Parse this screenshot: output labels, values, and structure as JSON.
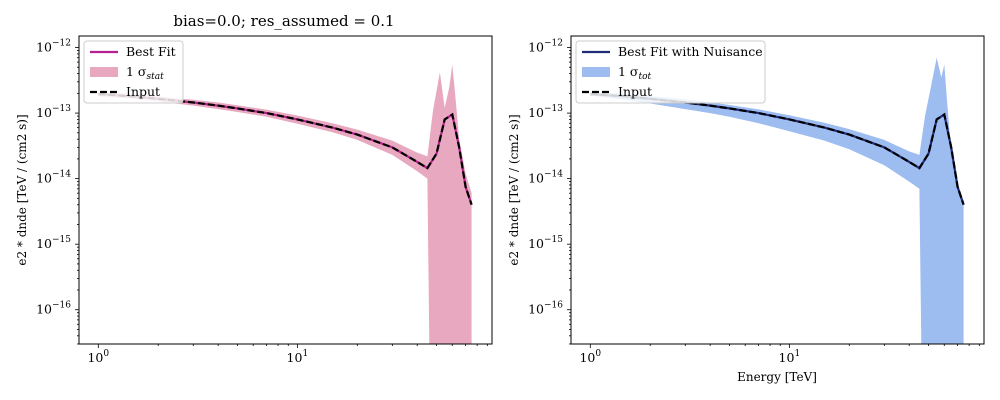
{
  "figure": {
    "title_left": "bias=0.0; res_assumed = 0.1"
  },
  "chart_data": [
    {
      "type": "line",
      "title": "bias=0.0; res_assumed = 0.1",
      "xlabel": "",
      "ylabel": "e2 * dnde [TeV / (cm2 s)]",
      "xscale": "log",
      "yscale": "log",
      "xlim": [
        0.8,
        95
      ],
      "ylim": [
        3e-17,
        1.5e-12
      ],
      "x_ticks": [
        {
          "base": "10",
          "exp": "0"
        },
        {
          "base": "10",
          "exp": "1"
        }
      ],
      "y_ticks": [
        {
          "base": "10",
          "exp": "−12"
        },
        {
          "base": "10",
          "exp": "−13"
        },
        {
          "base": "10",
          "exp": "−14"
        },
        {
          "base": "10",
          "exp": "−15"
        },
        {
          "base": "10",
          "exp": "−16"
        }
      ],
      "legend": {
        "placement": "upper-left",
        "entries": [
          {
            "label": "Best Fit",
            "kind": "line",
            "color": "#b5208f"
          },
          {
            "label": "1 σ",
            "sub": "stat",
            "kind": "band",
            "color": "#e8a9c0"
          },
          {
            "label": "Input",
            "kind": "dashed",
            "color": "#000000"
          }
        ]
      },
      "band_color": "#e8a9c0",
      "fit_color": "#b5208f",
      "series": [
        {
          "name": "Input",
          "x": [
            1,
            1.5,
            2,
            3,
            4,
            5,
            7,
            10,
            15,
            20,
            30,
            40,
            45,
            50,
            55,
            60,
            65,
            70,
            75
          ],
          "y": [
            1.95e-13,
            1.8e-13,
            1.65e-13,
            1.45e-13,
            1.3e-13,
            1.18e-13,
            1e-13,
            8e-14,
            6e-14,
            4.7e-14,
            3e-14,
            1.8e-14,
            1.45e-14,
            2.4e-14,
            8e-14,
            9.5e-14,
            3e-14,
            7.5e-15,
            4e-15
          ]
        },
        {
          "name": "Best Fit",
          "x": [
            1,
            1.5,
            2,
            3,
            4,
            5,
            7,
            10,
            15,
            20,
            30,
            40,
            45,
            50,
            55,
            60,
            65,
            70,
            75
          ],
          "y": [
            1.95e-13,
            1.8e-13,
            1.65e-13,
            1.45e-13,
            1.3e-13,
            1.18e-13,
            1e-13,
            8e-14,
            6e-14,
            4.7e-14,
            3e-14,
            1.8e-14,
            1.45e-14,
            2.4e-14,
            8e-14,
            9.5e-14,
            3e-14,
            7.5e-15,
            4e-15
          ]
        },
        {
          "name": "1 σ stat band upper",
          "x": [
            1,
            1.5,
            2,
            3,
            4,
            5,
            7,
            10,
            15,
            20,
            30,
            40,
            45,
            48,
            52,
            55,
            58,
            60,
            62,
            65,
            70,
            75
          ],
          "y": [
            2.1e-13,
            1.95e-13,
            1.8e-13,
            1.6e-13,
            1.45e-13,
            1.32e-13,
            1.13e-13,
            9.2e-14,
            7e-14,
            5.6e-14,
            3.8e-14,
            2.5e-14,
            2.2e-14,
            1.1e-13,
            4.2e-13,
            1.2e-13,
            2.5e-13,
            5.5e-13,
            2e-13,
            4e-14,
            1.2e-14,
            6e-15
          ]
        },
        {
          "name": "1 σ stat band lower",
          "x": [
            1,
            1.5,
            2,
            3,
            4,
            5,
            7,
            10,
            15,
            20,
            30,
            40,
            45,
            46,
            52,
            55,
            56,
            58,
            60,
            65,
            70,
            75
          ],
          "y": [
            1.8e-13,
            1.65e-13,
            1.5e-13,
            1.3e-13,
            1.15e-13,
            1.04e-13,
            8.8e-14,
            6.9e-14,
            5.1e-14,
            3.9e-14,
            2.3e-14,
            1.3e-14,
            1e-14,
            3e-17,
            3e-17,
            3e-17,
            3e-17,
            3e-17,
            3e-17,
            3e-17,
            3e-17,
            3e-17
          ]
        }
      ]
    },
    {
      "type": "line",
      "title": "",
      "xlabel": "Energy [TeV]",
      "ylabel": "e2 * dnde [TeV / (cm2 s)]",
      "xscale": "log",
      "yscale": "log",
      "xlim": [
        0.8,
        95
      ],
      "ylim": [
        3e-17,
        1.5e-12
      ],
      "x_ticks": [
        {
          "base": "10",
          "exp": "0"
        },
        {
          "base": "10",
          "exp": "1"
        }
      ],
      "y_ticks": [
        {
          "base": "10",
          "exp": "−12"
        },
        {
          "base": "10",
          "exp": "−13"
        },
        {
          "base": "10",
          "exp": "−14"
        },
        {
          "base": "10",
          "exp": "−15"
        },
        {
          "base": "10",
          "exp": "−16"
        }
      ],
      "legend": {
        "placement": "upper-left",
        "entries": [
          {
            "label": "Best Fit with Nuisance",
            "kind": "line",
            "color": "#1f2a78"
          },
          {
            "label": "1 σ",
            "sub": "tot",
            "kind": "band",
            "color": "#9dbcf0"
          },
          {
            "label": "Input",
            "kind": "dashed",
            "color": "#000000"
          }
        ]
      },
      "band_color": "#9dbcf0",
      "fit_color": "#1f2a78",
      "series": [
        {
          "name": "Input",
          "x": [
            1,
            1.5,
            2,
            3,
            4,
            5,
            7,
            10,
            15,
            20,
            30,
            40,
            45,
            50,
            55,
            60,
            65,
            70,
            75
          ],
          "y": [
            1.95e-13,
            1.8e-13,
            1.65e-13,
            1.45e-13,
            1.3e-13,
            1.18e-13,
            1e-13,
            8e-14,
            6e-14,
            4.7e-14,
            3e-14,
            1.8e-14,
            1.45e-14,
            2.4e-14,
            8e-14,
            9.5e-14,
            3e-14,
            7.5e-15,
            4e-15
          ]
        },
        {
          "name": "Best Fit with Nuisance",
          "x": [
            1,
            1.5,
            2,
            3,
            4,
            5,
            7,
            10,
            15,
            20,
            30,
            40,
            45,
            50,
            55,
            60,
            65,
            70,
            75
          ],
          "y": [
            1.95e-13,
            1.8e-13,
            1.65e-13,
            1.45e-13,
            1.3e-13,
            1.18e-13,
            1e-13,
            8e-14,
            6e-14,
            4.7e-14,
            3e-14,
            1.8e-14,
            1.45e-14,
            2.4e-14,
            8e-14,
            9.5e-14,
            3e-14,
            7.5e-15,
            4e-15
          ]
        },
        {
          "name": "1 σ tot band upper",
          "x": [
            1,
            1.5,
            2,
            3,
            4,
            5,
            7,
            10,
            15,
            20,
            30,
            40,
            45,
            48,
            52,
            55,
            58,
            60,
            62,
            65,
            70,
            75
          ],
          "y": [
            2.1e-13,
            1.97e-13,
            1.82e-13,
            1.62e-13,
            1.46e-13,
            1.33e-13,
            1.14e-13,
            9.3e-14,
            7.1e-14,
            5.7e-14,
            3.9e-14,
            2.6e-14,
            2.3e-14,
            9e-14,
            3e-13,
            7e-13,
            3.5e-13,
            5.5e-13,
            1.5e-13,
            2.5e-14,
            8e-15,
            4.5e-15
          ]
        },
        {
          "name": "1 σ tot band lower",
          "x": [
            1,
            1.5,
            2,
            3,
            4,
            5,
            7,
            10,
            15,
            20,
            30,
            40,
            45,
            46,
            52,
            55,
            58,
            60,
            65,
            70,
            75
          ],
          "y": [
            1.85e-13,
            1.6e-13,
            1.4e-13,
            1.15e-13,
            1e-13,
            8.8e-14,
            7e-14,
            5.3e-14,
            3.8e-14,
            2.8e-14,
            1.6e-14,
            9e-15,
            7e-15,
            3e-17,
            3e-17,
            3e-17,
            3e-17,
            3e-17,
            3e-17,
            3e-17,
            3e-17
          ]
        }
      ]
    }
  ]
}
